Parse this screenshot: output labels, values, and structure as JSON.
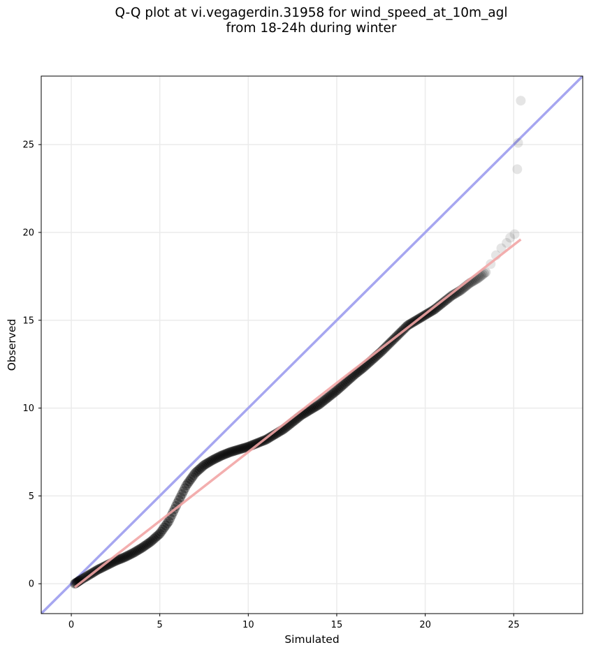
{
  "title": {
    "line1": "Q-Q plot at vi.vegagerdin.31958 for wind_speed_at_10m_agl",
    "line2": "from 18-24h during winter"
  },
  "chart_data": {
    "type": "scatter",
    "xlabel": "Simulated",
    "ylabel": "Observed",
    "xlim": [
      -1.7,
      28.9
    ],
    "ylim": [
      -1.7,
      28.9
    ],
    "xticks": [
      0,
      5,
      10,
      15,
      20,
      25
    ],
    "yticks": [
      0,
      5,
      10,
      15,
      20,
      25
    ],
    "grid": true,
    "colors": {
      "points": "#000000",
      "identity_line": "#a6a6f0",
      "fit_line": "#f2a5a5",
      "grid": "#ebebeb"
    },
    "identity_line": {
      "x": [
        -1.7,
        28.9
      ],
      "y": [
        -1.7,
        28.9
      ]
    },
    "fit_line": {
      "x": [
        0.2,
        25.4
      ],
      "y": [
        -0.2,
        19.6
      ]
    },
    "quantile_curve": {
      "x": [
        0.2,
        0.5,
        1.0,
        1.5,
        2.0,
        2.5,
        3.0,
        3.5,
        4.0,
        4.5,
        5.0,
        5.5,
        6.0,
        6.5,
        7.0,
        7.5,
        8.0,
        8.5,
        9.0,
        9.5,
        10.0,
        10.5,
        11.0,
        11.5,
        12.0,
        12.5,
        13.0,
        13.5,
        14.0,
        14.5,
        15.0,
        15.5,
        16.0,
        16.5,
        17.0,
        17.5,
        18.0,
        18.5,
        19.0,
        19.5,
        20.0,
        20.5,
        21.0,
        21.5,
        22.0,
        22.5,
        23.0,
        23.5
      ],
      "y": [
        0.0,
        0.2,
        0.5,
        0.8,
        1.05,
        1.3,
        1.5,
        1.75,
        2.05,
        2.4,
        2.85,
        3.55,
        4.6,
        5.6,
        6.3,
        6.75,
        7.05,
        7.3,
        7.5,
        7.65,
        7.8,
        8.0,
        8.2,
        8.5,
        8.8,
        9.2,
        9.6,
        9.9,
        10.2,
        10.6,
        11.0,
        11.45,
        11.9,
        12.3,
        12.75,
        13.2,
        13.7,
        14.2,
        14.7,
        15.0,
        15.3,
        15.6,
        16.0,
        16.4,
        16.7,
        17.1,
        17.4,
        17.8
      ]
    },
    "tail_points": {
      "x": [
        23.7,
        24.0,
        24.3,
        24.6,
        24.8,
        25.05,
        25.2,
        25.25,
        25.4
      ],
      "y": [
        18.2,
        18.7,
        19.1,
        19.4,
        19.7,
        19.9,
        23.6,
        25.1,
        27.5
      ]
    }
  }
}
